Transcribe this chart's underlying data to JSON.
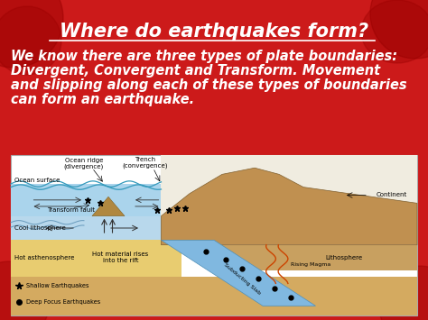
{
  "title": "Where do earthquakes form?",
  "body_lines": [
    "We know there are three types of plate boundaries:",
    "Divergent, Convergent and Transform. Movement",
    "and slipping along each of these types of boundaries",
    "can form an earthquake."
  ],
  "bg_color": "#cc1a1a",
  "title_color": "#ffffff",
  "body_color": "#ffffff",
  "title_fontsize": 15,
  "body_fontsize": 10.5,
  "ocean_color": "#aad4ec",
  "ocean_deep_color": "#88bbdd",
  "litho_color": "#c8a060",
  "asthen_color": "#e8c870",
  "continent_color": "#c09050",
  "subduct_color": "#88bbdd",
  "sky_color": "#f0ece0",
  "bot_color": "#d4aa60"
}
